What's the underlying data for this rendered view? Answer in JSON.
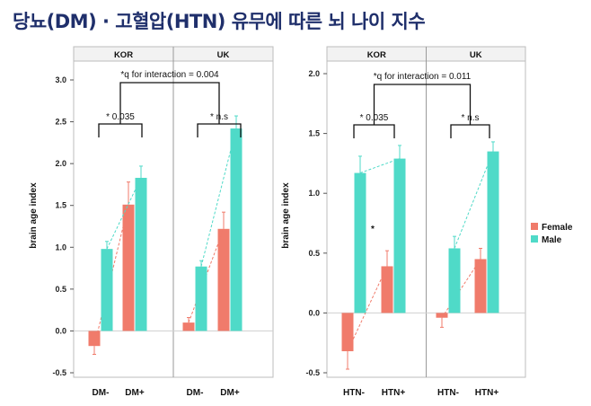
{
  "title": "당뇨(DM) · 고혈압(HTN) 유무에 따른 뇌 나이 지수",
  "colors": {
    "female": "#f07b6b",
    "male": "#4fdac8",
    "title": "#1f2f6b"
  },
  "chart_data": [
    {
      "type": "bar",
      "ylabel": "brain age index",
      "ylim": [
        -0.55,
        3.1
      ],
      "yticks": [
        "-0.5",
        "0.0",
        "0.5",
        "1.0",
        "1.5",
        "2.0",
        "2.5",
        "3.0"
      ],
      "ytick_values": [
        -0.5,
        0,
        0.5,
        1,
        1.5,
        2,
        2.5,
        3
      ],
      "panels": [
        "KOR",
        "UK"
      ],
      "categories": [
        [
          "DM-",
          "DM+"
        ],
        [
          "DM-",
          "DM+"
        ]
      ],
      "series": [
        {
          "name": "Female",
          "values": [
            [
              -0.18,
              1.51
            ],
            [
              0.1,
              1.22
            ]
          ],
          "errors": [
            [
              0.1,
              0.27
            ],
            [
              0.06,
              0.2
            ]
          ]
        },
        {
          "name": "Male",
          "values": [
            [
              0.98,
              1.83
            ],
            [
              0.77,
              2.42
            ]
          ],
          "errors": [
            [
              0.09,
              0.14
            ],
            [
              0.07,
              0.15
            ]
          ]
        }
      ],
      "interaction_label": "*q for interaction = 0.004",
      "brackets": [
        "* 0.035",
        "* n.s"
      ]
    },
    {
      "type": "bar",
      "ylabel": "brain age index",
      "ylim": [
        -0.55,
        2.1
      ],
      "yticks": [
        "-0.5",
        "0.0",
        "0.5",
        "1.0",
        "1.5",
        "2.0"
      ],
      "ytick_values": [
        -0.5,
        0,
        0.5,
        1,
        1.5,
        2
      ],
      "panels": [
        "KOR",
        "UK"
      ],
      "categories": [
        [
          "HTN-",
          "HTN+"
        ],
        [
          "HTN-",
          "HTN+"
        ]
      ],
      "series": [
        {
          "name": "Female",
          "values": [
            [
              -0.32,
              0.39
            ],
            [
              -0.04,
              0.45
            ]
          ],
          "errors": [
            [
              0.15,
              0.13
            ],
            [
              0.08,
              0.09
            ]
          ]
        },
        {
          "name": "Male",
          "values": [
            [
              1.17,
              1.29
            ],
            [
              0.54,
              1.35
            ]
          ],
          "errors": [
            [
              0.14,
              0.11
            ],
            [
              0.1,
              0.08
            ]
          ]
        }
      ],
      "interaction_label": "*q for interaction = 0.011",
      "brackets": [
        "* 0.035",
        "* n.s"
      ],
      "star_annotation": "*"
    }
  ],
  "legend": [
    "Female",
    "Male"
  ]
}
